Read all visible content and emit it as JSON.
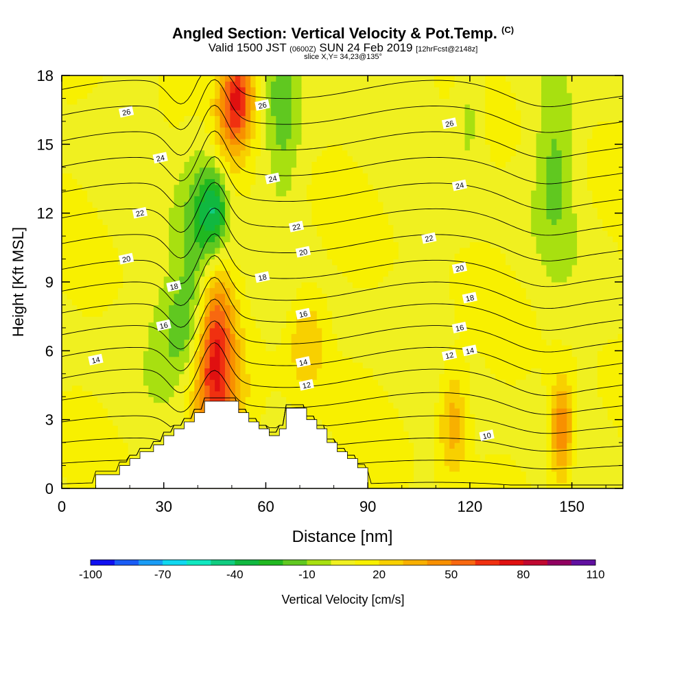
{
  "header": {
    "title": "Angled Section: Vertical Velocity & Pot.Temp.",
    "copyright": "(C)",
    "valid_prefix": "Valid 1500 JST",
    "valid_utc": "(0600Z)",
    "valid_date": "SUN 24 Feb 2019",
    "forecast": "[12hrFcst@2148z]",
    "slice": "slice X,Y= 34,23@135°"
  },
  "chart_data": {
    "type": "heatmap",
    "xlabel": "Distance [nm]",
    "ylabel": "Height [Kft MSL]",
    "xlim": [
      0,
      165
    ],
    "ylim": [
      0,
      18
    ],
    "xticks": [
      0,
      30,
      60,
      90,
      120,
      150
    ],
    "yticks": [
      0,
      3,
      6,
      9,
      12,
      15,
      18
    ],
    "colorbar": {
      "label": "Vertical Velocity [cm/s]",
      "min": -100,
      "max": 110,
      "step": 10,
      "tick_labels": [
        -100,
        -70,
        -40,
        -10,
        20,
        50,
        80,
        110
      ],
      "colors": [
        "#1010f0",
        "#1a5cf5",
        "#1a9cf5",
        "#10d8f0",
        "#10e8c0",
        "#10cc80",
        "#10b840",
        "#20b820",
        "#60c820",
        "#a8e010",
        "#f0f020",
        "#f8f000",
        "#f8d000",
        "#f8b000",
        "#f89000",
        "#f86810",
        "#f03010",
        "#e01010",
        "#c00830",
        "#900060",
        "#6010a0"
      ]
    },
    "contour_label": "Pot.Temp.",
    "contour_levels": [
      10,
      11,
      12,
      13,
      14,
      15,
      16,
      17,
      18,
      19,
      20,
      21,
      22,
      23,
      24,
      25,
      26,
      27
    ],
    "contour_labels_shown": [
      {
        "v": 26,
        "x": 19,
        "y": 16.4
      },
      {
        "v": 26,
        "x": 59,
        "y": 16.7
      },
      {
        "v": 26,
        "x": 114,
        "y": 15.9
      },
      {
        "v": 24,
        "x": 29,
        "y": 14.4
      },
      {
        "v": 24,
        "x": 62,
        "y": 13.5
      },
      {
        "v": 24,
        "x": 117,
        "y": 13.2
      },
      {
        "v": 22,
        "x": 23,
        "y": 12.0
      },
      {
        "v": 22,
        "x": 69,
        "y": 11.4
      },
      {
        "v": 22,
        "x": 108,
        "y": 10.9
      },
      {
        "v": 20,
        "x": 19,
        "y": 10.0
      },
      {
        "v": 20,
        "x": 71,
        "y": 10.3
      },
      {
        "v": 20,
        "x": 117,
        "y": 9.6
      },
      {
        "v": 18,
        "x": 33,
        "y": 8.8
      },
      {
        "v": 18,
        "x": 59,
        "y": 9.2
      },
      {
        "v": 18,
        "x": 120,
        "y": 8.3
      },
      {
        "v": 16,
        "x": 30,
        "y": 7.1
      },
      {
        "v": 16,
        "x": 71,
        "y": 7.6
      },
      {
        "v": 16,
        "x": 117,
        "y": 7.0
      },
      {
        "v": 14,
        "x": 10,
        "y": 5.6
      },
      {
        "v": 14,
        "x": 71,
        "y": 5.5
      },
      {
        "v": 14,
        "x": 120,
        "y": 6.0
      },
      {
        "v": 12,
        "x": 72,
        "y": 4.5
      },
      {
        "v": 12,
        "x": 114,
        "y": 5.8
      },
      {
        "v": 10,
        "x": 125,
        "y": 2.3
      }
    ],
    "vertical_velocity_features": [
      {
        "x": 45,
        "y": 6.5,
        "value": 60,
        "sx": 4,
        "sy": 2.2,
        "note": "updraft core"
      },
      {
        "x": 45,
        "y": 3.5,
        "value": 30,
        "sx": 6,
        "sy": 1.6
      },
      {
        "x": 52,
        "y": 17.3,
        "value": 50,
        "sx": 3.5,
        "sy": 1.3
      },
      {
        "x": 50,
        "y": 15.8,
        "value": 25,
        "sx": 3.5,
        "sy": 1.6
      },
      {
        "x": 45,
        "y": 12.2,
        "value": -40,
        "sx": 3,
        "sy": 1.4,
        "note": "downdraft"
      },
      {
        "x": 40,
        "y": 11,
        "value": -25,
        "sx": 4,
        "sy": 3
      },
      {
        "x": 36,
        "y": 7.0,
        "value": -25,
        "sx": 6,
        "sy": 1.7
      },
      {
        "x": 65,
        "y": 16.2,
        "value": -20,
        "sx": 3.5,
        "sy": 2.5
      },
      {
        "x": 72,
        "y": 6.5,
        "value": 25,
        "sx": 4,
        "sy": 1.6
      },
      {
        "x": 115,
        "y": 3.0,
        "value": 30,
        "sx": 3,
        "sy": 1.7
      },
      {
        "x": 147,
        "y": 2.5,
        "value": 45,
        "sx": 2.5,
        "sy": 1.6
      },
      {
        "x": 145,
        "y": 14.0,
        "value": -20,
        "sx": 4,
        "sy": 2.5
      },
      {
        "x": 120,
        "y": 16.5,
        "value": -15,
        "sx": 3,
        "sy": 2
      }
    ],
    "terrain_top_kft": [
      {
        "x": 10,
        "h": 0.6
      },
      {
        "x": 17,
        "h": 1.0
      },
      {
        "x": 20,
        "h": 1.3
      },
      {
        "x": 23,
        "h": 1.6
      },
      {
        "x": 27,
        "h": 1.9
      },
      {
        "x": 30,
        "h": 2.3
      },
      {
        "x": 33,
        "h": 2.6
      },
      {
        "x": 36,
        "h": 2.9
      },
      {
        "x": 39,
        "h": 3.3
      },
      {
        "x": 42,
        "h": 3.8
      },
      {
        "x": 52,
        "h": 3.3
      },
      {
        "x": 55,
        "h": 2.9
      },
      {
        "x": 58,
        "h": 2.6
      },
      {
        "x": 61,
        "h": 2.3
      },
      {
        "x": 64,
        "h": 2.6
      },
      {
        "x": 66,
        "h": 3.5
      },
      {
        "x": 72,
        "h": 3.0
      },
      {
        "x": 75,
        "h": 2.6
      },
      {
        "x": 78,
        "h": 2.0
      },
      {
        "x": 81,
        "h": 1.6
      },
      {
        "x": 84,
        "h": 1.3
      },
      {
        "x": 87,
        "h": 0.9
      },
      {
        "x": 90,
        "h": 0.6
      }
    ],
    "grid": false
  }
}
